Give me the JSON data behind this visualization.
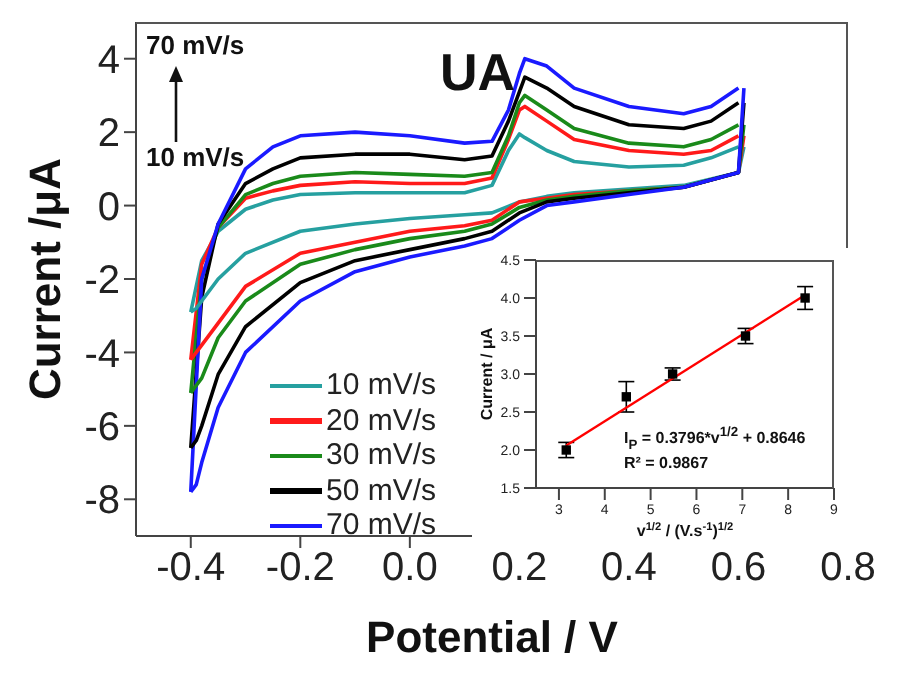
{
  "chart_data": [
    {
      "type": "line",
      "xlabel": "Potential / V",
      "ylabel": "Current /μA",
      "annotations": [
        "UA",
        "70 mV/s",
        "10 mV/s"
      ],
      "x": [
        -0.4,
        -0.38,
        -0.35,
        -0.3,
        -0.25,
        -0.2,
        -0.1,
        0,
        0.1,
        0.15,
        0.18,
        0.2,
        0.21,
        0.25,
        0.3,
        0.4,
        0.5,
        0.55,
        0.6
      ],
      "series": [
        {
          "name": "10 mV/s",
          "color": "#26a0a0",
          "values": [
            -2.9,
            -1.5,
            -0.7,
            -0.1,
            0.15,
            0.3,
            0.35,
            0.35,
            0.35,
            0.55,
            1.5,
            1.95,
            1.85,
            1.5,
            1.2,
            1.05,
            1.1,
            1.3,
            1.6
          ]
        },
        {
          "name": "20 mV/s",
          "color": "#ff1a1a",
          "values": [
            -4.2,
            -1.6,
            -0.6,
            0.2,
            0.4,
            0.55,
            0.65,
            0.6,
            0.6,
            0.75,
            1.8,
            2.6,
            2.7,
            2.3,
            1.8,
            1.5,
            1.4,
            1.5,
            1.9
          ]
        },
        {
          "name": "30 mV/s",
          "color": "#1a8a1a",
          "values": [
            -5.1,
            -2.0,
            -0.6,
            0.3,
            0.6,
            0.8,
            0.9,
            0.85,
            0.8,
            0.9,
            1.9,
            2.8,
            3.0,
            2.6,
            2.1,
            1.7,
            1.6,
            1.8,
            2.2
          ]
        },
        {
          "name": "50 mV/s",
          "color": "#000000",
          "values": [
            -6.6,
            -2.5,
            -0.5,
            0.6,
            1.0,
            1.3,
            1.4,
            1.4,
            1.25,
            1.35,
            2.3,
            3.1,
            3.5,
            3.2,
            2.7,
            2.2,
            2.1,
            2.3,
            2.8
          ]
        },
        {
          "name": "70 mV/s",
          "color": "#1a1aff",
          "values": [
            -7.8,
            -2.0,
            -0.5,
            1.0,
            1.6,
            1.9,
            2.0,
            1.9,
            1.7,
            1.75,
            2.6,
            3.6,
            4.0,
            3.8,
            3.2,
            2.7,
            2.5,
            2.7,
            3.2
          ]
        },
        {
          "color": "#26a0a0",
          "x": [
            -0.4,
            -0.39,
            -0.38,
            -0.35,
            -0.3,
            -0.2,
            -0.1,
            0,
            0.1,
            0.15,
            0.2,
            0.25,
            0.3,
            0.4,
            0.5,
            0.6,
            0.61
          ],
          "values": [
            -2.9,
            -2.8,
            -2.6,
            -2.0,
            -1.3,
            -0.7,
            -0.5,
            -0.35,
            -0.25,
            -0.2,
            0.1,
            0.25,
            0.35,
            0.45,
            0.55,
            0.9,
            1.6
          ]
        },
        {
          "color": "#ff1a1a",
          "x": [
            -0.4,
            -0.39,
            -0.38,
            -0.35,
            -0.3,
            -0.2,
            -0.1,
            0,
            0.1,
            0.15,
            0.2,
            0.25,
            0.3,
            0.4,
            0.5,
            0.6,
            0.61
          ],
          "values": [
            -4.2,
            -4.0,
            -3.8,
            -3.2,
            -2.2,
            -1.3,
            -1.0,
            -0.7,
            -0.55,
            -0.4,
            0.1,
            0.2,
            0.3,
            0.4,
            0.5,
            0.9,
            1.9
          ]
        },
        {
          "color": "#1a8a1a",
          "x": [
            -0.4,
            -0.39,
            -0.38,
            -0.35,
            -0.3,
            -0.2,
            -0.1,
            0,
            0.1,
            0.15,
            0.2,
            0.25,
            0.3,
            0.4,
            0.5,
            0.6,
            0.61
          ],
          "values": [
            -5.1,
            -4.9,
            -4.7,
            -3.6,
            -2.6,
            -1.6,
            -1.2,
            -0.9,
            -0.7,
            -0.5,
            -0.05,
            0.15,
            0.25,
            0.4,
            0.5,
            0.9,
            2.2
          ]
        },
        {
          "color": "#000000",
          "x": [
            -0.4,
            -0.39,
            -0.38,
            -0.35,
            -0.3,
            -0.2,
            -0.1,
            0,
            0.1,
            0.15,
            0.2,
            0.25,
            0.3,
            0.4,
            0.5,
            0.6,
            0.61
          ],
          "values": [
            -6.6,
            -6.4,
            -6.0,
            -4.6,
            -3.3,
            -2.1,
            -1.5,
            -1.2,
            -0.9,
            -0.7,
            -0.2,
            0.1,
            0.2,
            0.35,
            0.5,
            0.9,
            2.8
          ]
        },
        {
          "color": "#1a1aff",
          "x": [
            -0.4,
            -0.39,
            -0.38,
            -0.35,
            -0.3,
            -0.2,
            -0.1,
            0,
            0.1,
            0.15,
            0.2,
            0.25,
            0.3,
            0.4,
            0.5,
            0.6,
            0.61
          ],
          "values": [
            -7.8,
            -7.6,
            -7.0,
            -5.5,
            -4.0,
            -2.6,
            -1.8,
            -1.4,
            -1.1,
            -0.9,
            -0.4,
            0.0,
            0.1,
            0.3,
            0.5,
            0.9,
            3.2
          ]
        }
      ],
      "xlim": [
        -0.5,
        0.8
      ],
      "xticks": [
        -0.4,
        -0.2,
        {
          "value": 0,
          "label": "0.0"
        },
        0.2,
        0.4,
        0.6,
        0.8
      ],
      "ylim": [
        -9,
        5
      ],
      "yticks": [
        -8,
        -6,
        -4,
        -2,
        0,
        2,
        4
      ],
      "legend": "bottom left",
      "line_style": "solid"
    },
    {
      "type": "scatter",
      "xlabel": "v$^{1/2}$ / (V.s$^{-1}$)$^{1/2}$",
      "ylabel": "Current / μA",
      "annotations": [
        "I$_{P}$ = 0.3796*v$^{1/2}$ + 0.8646",
        "R² = 0.9867"
      ],
      "x": [
        3.16,
        4.47,
        5.48,
        7.07,
        8.37
      ],
      "series": [
        {
          "color": "#000000",
          "marker": "square",
          "values": [
            2.0,
            2.7,
            3.0,
            3.5,
            4.0
          ],
          "errors": [
            0.1,
            0.2,
            0.08,
            0.1,
            0.15
          ]
        },
        {
          "type": "line",
          "color": "#ff0000",
          "x": [
            3.16,
            8.37
          ],
          "values": [
            2.06,
            4.04
          ]
        }
      ],
      "xlim": [
        2.5,
        9
      ],
      "xticks": [
        3,
        4,
        5,
        6,
        7,
        8,
        9
      ],
      "ylim": [
        1.5,
        4.5
      ],
      "yticks": [
        1.5,
        {
          "value": 2,
          "label": "2.0"
        },
        2.5,
        {
          "value": 3,
          "label": "3.0"
        },
        3.5,
        {
          "value": 4,
          "label": "4.0"
        },
        4.5
      ]
    }
  ]
}
